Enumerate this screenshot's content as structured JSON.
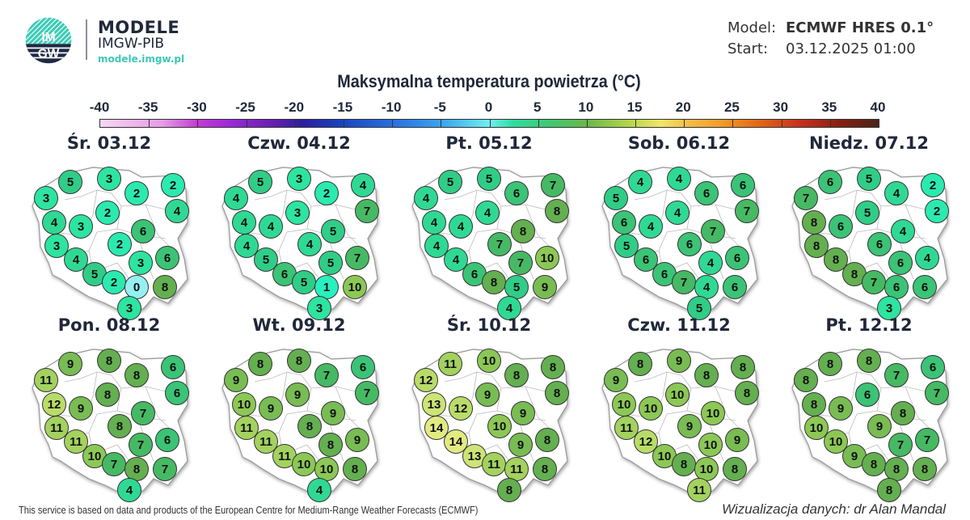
{
  "header": {
    "logo_text": "IMGW",
    "brand_title": "MODELE",
    "brand_subtitle": "IMGW-PIB",
    "brand_url": "modele.imgw.pl",
    "model_label": "Model:",
    "model_value": "ECMWF HRES 0.1°",
    "start_label": "Start:",
    "start_value": "03.12.2025 01:00"
  },
  "title": "Maksymalna temperatura powietrza (°C)",
  "colorbar": {
    "ticks": [
      "-40",
      "-35",
      "-30",
      "-25",
      "-20",
      "-15",
      "-10",
      "-5",
      "0",
      "5",
      "10",
      "15",
      "20",
      "25",
      "30",
      "35",
      "40"
    ],
    "min": -40,
    "max": 40
  },
  "panels": [
    {
      "label": "Śr. 03.12",
      "values": [
        5,
        3,
        3,
        2,
        2,
        4,
        4,
        3,
        2,
        6,
        3,
        2,
        4,
        6,
        3,
        5,
        2,
        0,
        8,
        3
      ]
    },
    {
      "label": "Czw. 04.12",
      "values": [
        5,
        3,
        4,
        4,
        2,
        7,
        4,
        4,
        3,
        5,
        4,
        4,
        5,
        7,
        5,
        6,
        5,
        1,
        10,
        3
      ]
    },
    {
      "label": "Pt. 05.12",
      "values": [
        5,
        5,
        4,
        7,
        6,
        8,
        4,
        4,
        4,
        8,
        4,
        7,
        4,
        10,
        7,
        6,
        8,
        5,
        9,
        4
      ]
    },
    {
      "label": "Sob. 06.12",
      "values": [
        4,
        4,
        5,
        6,
        6,
        7,
        6,
        4,
        4,
        7,
        5,
        6,
        6,
        6,
        4,
        6,
        7,
        4,
        6,
        5
      ]
    },
    {
      "label": "Niedz. 07.12",
      "values": [
        6,
        5,
        7,
        2,
        4,
        2,
        8,
        6,
        5,
        4,
        8,
        6,
        8,
        4,
        6,
        8,
        7,
        6,
        6,
        3
      ]
    },
    {
      "label": "Pon. 08.12",
      "values": [
        9,
        8,
        11,
        6,
        8,
        6,
        12,
        9,
        8,
        7,
        11,
        8,
        11,
        6,
        7,
        10,
        7,
        8,
        7,
        4
      ]
    },
    {
      "label": "Wt. 09.12",
      "values": [
        8,
        8,
        9,
        6,
        7,
        7,
        10,
        9,
        9,
        9,
        11,
        8,
        11,
        9,
        8,
        11,
        10,
        10,
        8,
        4
      ]
    },
    {
      "label": "Śr. 10.12",
      "values": [
        11,
        10,
        12,
        8,
        8,
        8,
        13,
        12,
        9,
        9,
        14,
        10,
        14,
        8,
        9,
        13,
        11,
        11,
        8,
        8
      ]
    },
    {
      "label": "Czw. 11.12",
      "values": [
        8,
        9,
        9,
        8,
        8,
        8,
        10,
        10,
        10,
        10,
        11,
        9,
        12,
        9,
        10,
        10,
        8,
        10,
        8,
        11
      ]
    },
    {
      "label": "Pt. 12.12",
      "values": [
        8,
        8,
        8,
        6,
        7,
        7,
        8,
        9,
        6,
        8,
        10,
        9,
        10,
        7,
        7,
        9,
        8,
        8,
        8,
        8
      ]
    }
  ],
  "footer": {
    "attribution": "This service is based on data and products of the European Centre for Medium-Range Weather Forecasts (ECMWF)",
    "credit": "Wizualizacja danych: dr Alan Mandal"
  },
  "chart_data": {
    "type": "map",
    "title": "Maksymalna temperatura powietrza (°C)",
    "unit": "°C",
    "model": "ECMWF HRES 0.1°",
    "run": "03.12.2025 01:00",
    "colorbar_range": [
      -40,
      40
    ],
    "dates": [
      "Śr. 03.12",
      "Czw. 04.12",
      "Pt. 05.12",
      "Sob. 06.12",
      "Niedz. 07.12",
      "Pon. 08.12",
      "Wt. 09.12",
      "Śr. 10.12",
      "Czw. 11.12",
      "Pt. 12.12"
    ],
    "series": [
      {
        "name": "Śr. 03.12",
        "values": [
          5,
          3,
          3,
          2,
          2,
          4,
          4,
          3,
          2,
          6,
          3,
          2,
          4,
          6,
          3,
          5,
          2,
          0,
          8,
          3
        ]
      },
      {
        "name": "Czw. 04.12",
        "values": [
          5,
          3,
          4,
          4,
          2,
          7,
          4,
          4,
          3,
          5,
          4,
          4,
          5,
          7,
          5,
          6,
          5,
          1,
          10,
          3
        ]
      },
      {
        "name": "Pt. 05.12",
        "values": [
          5,
          5,
          4,
          7,
          6,
          8,
          4,
          4,
          4,
          8,
          4,
          7,
          4,
          10,
          7,
          6,
          8,
          5,
          9,
          4
        ]
      },
      {
        "name": "Sob. 06.12",
        "values": [
          4,
          4,
          5,
          6,
          6,
          7,
          6,
          4,
          4,
          7,
          5,
          6,
          6,
          6,
          4,
          6,
          7,
          4,
          6,
          5
        ]
      },
      {
        "name": "Niedz. 07.12",
        "values": [
          6,
          5,
          7,
          2,
          4,
          2,
          8,
          6,
          5,
          4,
          8,
          6,
          8,
          4,
          6,
          8,
          7,
          6,
          6,
          3
        ]
      },
      {
        "name": "Pon. 08.12",
        "values": [
          9,
          8,
          11,
          6,
          8,
          6,
          12,
          9,
          8,
          7,
          11,
          8,
          11,
          6,
          7,
          10,
          7,
          8,
          7,
          4
        ]
      },
      {
        "name": "Wt. 09.12",
        "values": [
          8,
          8,
          9,
          6,
          7,
          7,
          10,
          9,
          9,
          9,
          11,
          8,
          11,
          9,
          8,
          11,
          10,
          10,
          8,
          4
        ]
      },
      {
        "name": "Śr. 10.12",
        "values": [
          11,
          10,
          12,
          8,
          8,
          8,
          13,
          12,
          9,
          9,
          14,
          10,
          14,
          8,
          9,
          13,
          11,
          11,
          8,
          8
        ]
      },
      {
        "name": "Czw. 11.12",
        "values": [
          8,
          9,
          9,
          8,
          8,
          8,
          10,
          10,
          10,
          10,
          11,
          9,
          12,
          9,
          10,
          10,
          8,
          10,
          8,
          11
        ]
      },
      {
        "name": "Pt. 12.12",
        "values": [
          8,
          8,
          8,
          6,
          7,
          7,
          8,
          9,
          6,
          8,
          10,
          9,
          10,
          7,
          7,
          9,
          8,
          8,
          8,
          8
        ]
      }
    ]
  }
}
